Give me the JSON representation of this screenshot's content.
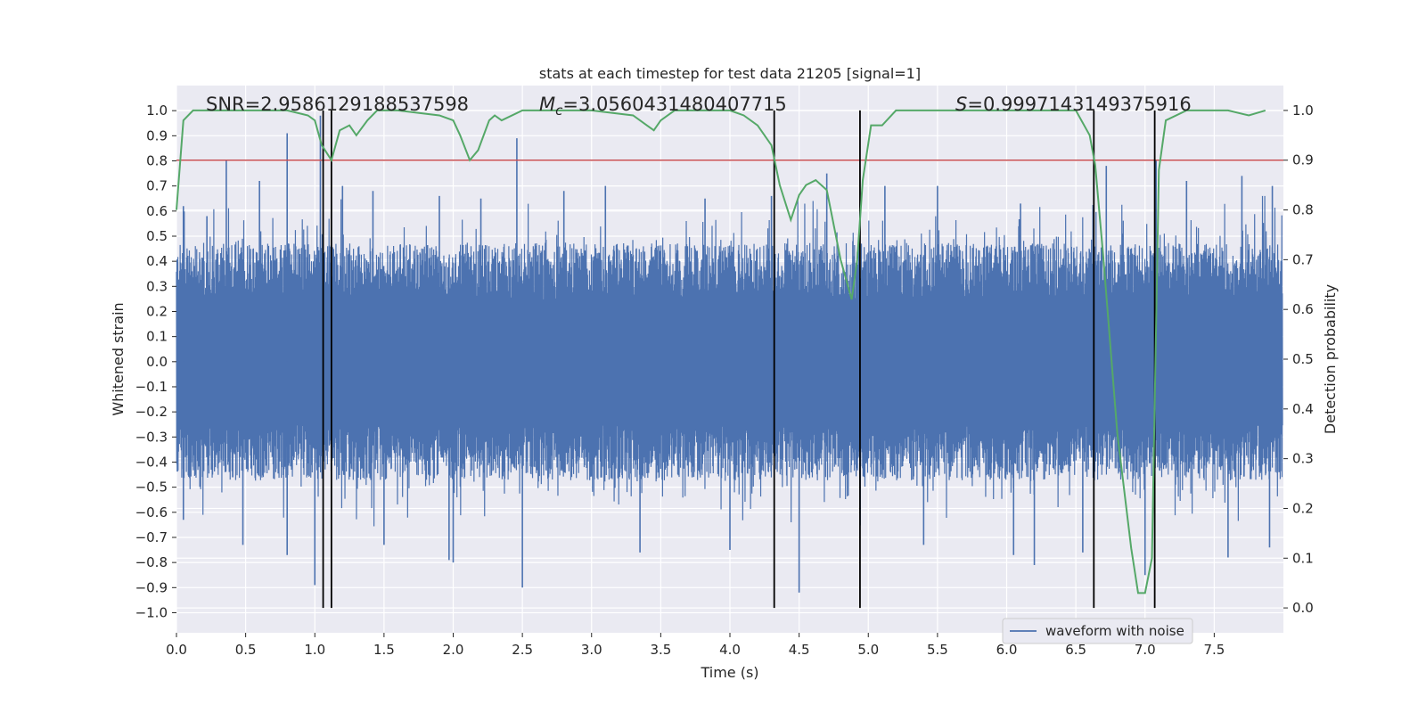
{
  "chart_data": {
    "type": "line",
    "title": "stats at each timestep for test data 21205 [signal=1]",
    "xlabel": "Time (s)",
    "ylabel": "Whitened strain",
    "y2label": "Detection probability",
    "xlim": [
      0.0,
      8.0
    ],
    "ylim": [
      -1.08,
      1.1
    ],
    "y2lim": [
      -0.05,
      1.05
    ],
    "grid": true,
    "legend_position": "lower-right",
    "x_ticks": [
      "0.0",
      "0.5",
      "1.0",
      "1.5",
      "2.0",
      "2.5",
      "3.0",
      "3.5",
      "4.0",
      "4.5",
      "5.0",
      "5.5",
      "6.0",
      "6.5",
      "7.0",
      "7.5"
    ],
    "x_tick_values": [
      0.0,
      0.5,
      1.0,
      1.5,
      2.0,
      2.5,
      3.0,
      3.5,
      4.0,
      4.5,
      5.0,
      5.5,
      6.0,
      6.5,
      7.0,
      7.5
    ],
    "y_ticks": [
      "1.0",
      "0.9",
      "0.8",
      "0.7",
      "0.6",
      "0.5",
      "0.4",
      "0.3",
      "0.2",
      "0.1",
      "0.0",
      "−0.1",
      "−0.2",
      "−0.3",
      "−0.4",
      "−0.5",
      "−0.6",
      "−0.7",
      "−0.8",
      "−0.9",
      "−1.0"
    ],
    "y_tick_values": [
      1.0,
      0.9,
      0.8,
      0.7,
      0.6,
      0.5,
      0.4,
      0.3,
      0.2,
      0.1,
      0.0,
      -0.1,
      -0.2,
      -0.3,
      -0.4,
      -0.5,
      -0.6,
      -0.7,
      -0.8,
      -0.9,
      -1.0
    ],
    "y2_ticks": [
      "1.0",
      "0.9",
      "0.8",
      "0.7",
      "0.6",
      "0.5",
      "0.4",
      "0.3",
      "0.2",
      "0.1",
      "0.0"
    ],
    "y2_tick_values": [
      1.0,
      0.9,
      0.8,
      0.7,
      0.6,
      0.5,
      0.4,
      0.3,
      0.2,
      0.1,
      0.0
    ],
    "annotations": {
      "snr": "SNR=2.9586129188537598",
      "mc_symbol": "M",
      "mc_sub": "c",
      "mc_value": "=3.0560431480407715",
      "s_symbol": "S",
      "s_value": "=0.9997143149375916"
    },
    "threshold": {
      "value": 0.9,
      "axis": "y2",
      "color": "#c44e52"
    },
    "vertical_lines": [
      1.06,
      1.12,
      4.32,
      4.94,
      6.63,
      7.07
    ],
    "vertical_line_color": "#000000",
    "series": [
      {
        "name": "waveform with noise",
        "axis": "y",
        "color": "#4c72b0",
        "style": "dense noisy waveform",
        "typical_amplitude": 0.45,
        "upper_spikes": [
          [
            0.05,
            0.62
          ],
          [
            0.22,
            0.58
          ],
          [
            0.36,
            0.8
          ],
          [
            0.6,
            0.72
          ],
          [
            0.8,
            0.91
          ],
          [
            1.04,
            0.98
          ],
          [
            1.2,
            0.7
          ],
          [
            1.42,
            0.68
          ],
          [
            1.9,
            0.66
          ],
          [
            2.2,
            0.65
          ],
          [
            2.46,
            0.89
          ],
          [
            2.8,
            0.68
          ],
          [
            3.1,
            0.7
          ],
          [
            3.82,
            0.65
          ],
          [
            4.3,
            0.66
          ],
          [
            4.7,
            0.75
          ],
          [
            5.12,
            0.7
          ],
          [
            5.5,
            0.7
          ],
          [
            6.1,
            0.63
          ],
          [
            6.72,
            0.78
          ],
          [
            7.08,
            0.8
          ],
          [
            7.3,
            0.72
          ],
          [
            7.7,
            0.74
          ],
          [
            7.92,
            0.7
          ]
        ],
        "lower_spikes": [
          [
            0.05,
            -0.63
          ],
          [
            0.48,
            -0.73
          ],
          [
            0.8,
            -0.77
          ],
          [
            1.0,
            -0.89
          ],
          [
            1.5,
            -0.73
          ],
          [
            1.97,
            -0.79
          ],
          [
            2.0,
            -0.8
          ],
          [
            2.5,
            -0.9
          ],
          [
            3.35,
            -0.76
          ],
          [
            4.0,
            -0.75
          ],
          [
            4.5,
            -0.92
          ],
          [
            5.4,
            -0.73
          ],
          [
            6.05,
            -0.77
          ],
          [
            6.2,
            -0.81
          ],
          [
            6.55,
            -0.76
          ],
          [
            7.0,
            -0.85
          ],
          [
            7.6,
            -0.78
          ],
          [
            7.9,
            -0.74
          ]
        ]
      },
      {
        "name": "",
        "axis": "y2",
        "color": "#55a868",
        "x": [
          0.0,
          0.05,
          0.12,
          0.2,
          0.5,
          0.8,
          0.95,
          1.0,
          1.05,
          1.12,
          1.18,
          1.25,
          1.3,
          1.38,
          1.45,
          1.6,
          1.9,
          2.0,
          2.05,
          2.12,
          2.18,
          2.26,
          2.3,
          2.35,
          2.5,
          2.8,
          3.0,
          3.3,
          3.4,
          3.45,
          3.5,
          3.6,
          3.8,
          4.0,
          4.1,
          4.2,
          4.3,
          4.36,
          4.44,
          4.5,
          4.55,
          4.62,
          4.7,
          4.8,
          4.88,
          4.92,
          4.96,
          5.02,
          5.1,
          5.2,
          5.4,
          5.6,
          6.0,
          6.5,
          6.6,
          6.64,
          6.7,
          6.8,
          6.9,
          6.95,
          7.0,
          7.05,
          7.1,
          7.15,
          7.3,
          7.6,
          7.75,
          7.87
        ],
        "values": [
          0.8,
          0.98,
          1.0,
          1.0,
          1.0,
          1.0,
          0.99,
          0.98,
          0.93,
          0.9,
          0.96,
          0.97,
          0.95,
          0.98,
          1.0,
          1.0,
          0.99,
          0.98,
          0.95,
          0.9,
          0.92,
          0.98,
          0.99,
          0.98,
          1.0,
          1.0,
          1.0,
          0.99,
          0.97,
          0.96,
          0.98,
          1.0,
          1.0,
          1.0,
          0.99,
          0.97,
          0.93,
          0.85,
          0.78,
          0.83,
          0.85,
          0.86,
          0.84,
          0.7,
          0.62,
          0.7,
          0.86,
          0.97,
          0.97,
          1.0,
          1.0,
          1.0,
          1.0,
          1.0,
          0.95,
          0.89,
          0.7,
          0.35,
          0.12,
          0.03,
          0.03,
          0.1,
          0.88,
          0.98,
          1.0,
          1.0,
          0.99,
          1.0
        ]
      }
    ]
  }
}
